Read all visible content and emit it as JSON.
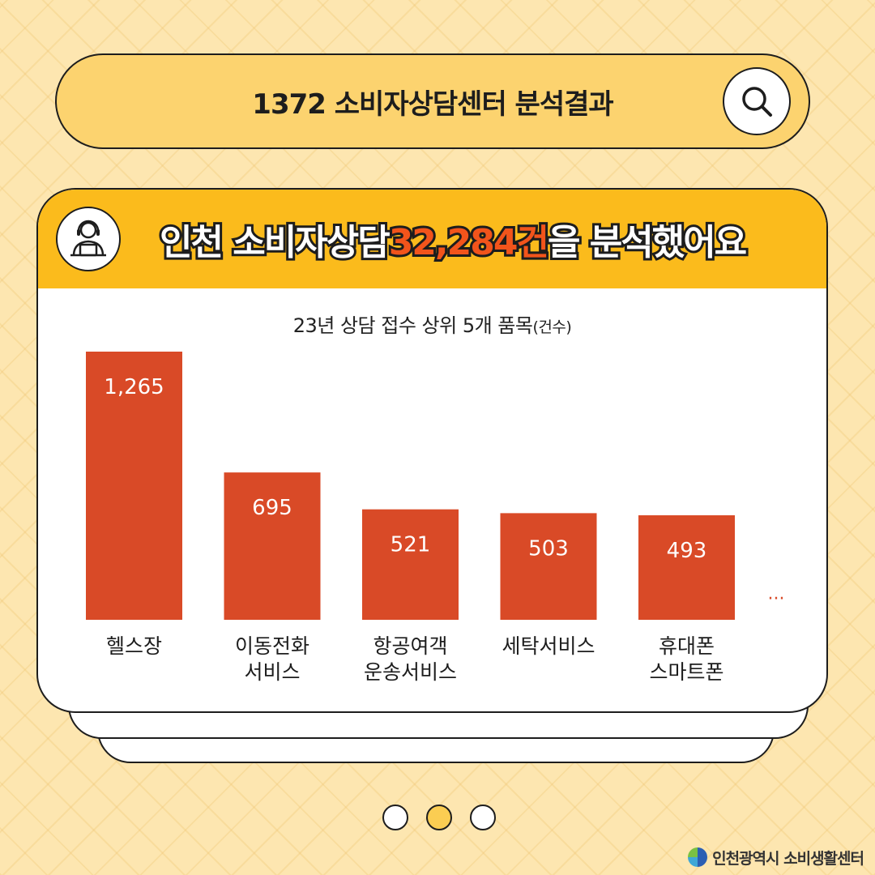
{
  "header": {
    "title": "1372 소비자상담센터 분석결과"
  },
  "card": {
    "headline_prefix": "인천 소비자상담 ",
    "headline_number": "32,284건",
    "headline_suffix": "을 분석했어요",
    "chart_title": "23년 상담 접수 상위 5개 품목",
    "chart_unit": "(건수)"
  },
  "chart_data": {
    "type": "bar",
    "title": "23년 상담 접수 상위 5개 품목(건수)",
    "categories": [
      [
        "헬스장"
      ],
      [
        "이동전화",
        "서비스"
      ],
      [
        "항공여객",
        "운송서비스"
      ],
      [
        "세탁서비스"
      ],
      [
        "휴대폰",
        "스마트폰"
      ]
    ],
    "values": [
      1265,
      695,
      521,
      503,
      493
    ],
    "value_labels": [
      "1,265",
      "695",
      "521",
      "503",
      "493"
    ],
    "more_marker": "···",
    "bar_color": "#d94a27",
    "label_color": "#ffffff"
  },
  "pagination": {
    "total": 3,
    "active": 1
  },
  "footer": {
    "org": "인천광역시 소비생활센터"
  },
  "colors": {
    "background": "#fde6b0",
    "pill": "#fcd36f",
    "header": "#fbbb1c",
    "highlight": "#f2541b"
  },
  "icons": {
    "search": "search-icon",
    "avatar": "counselor-headset-icon"
  }
}
